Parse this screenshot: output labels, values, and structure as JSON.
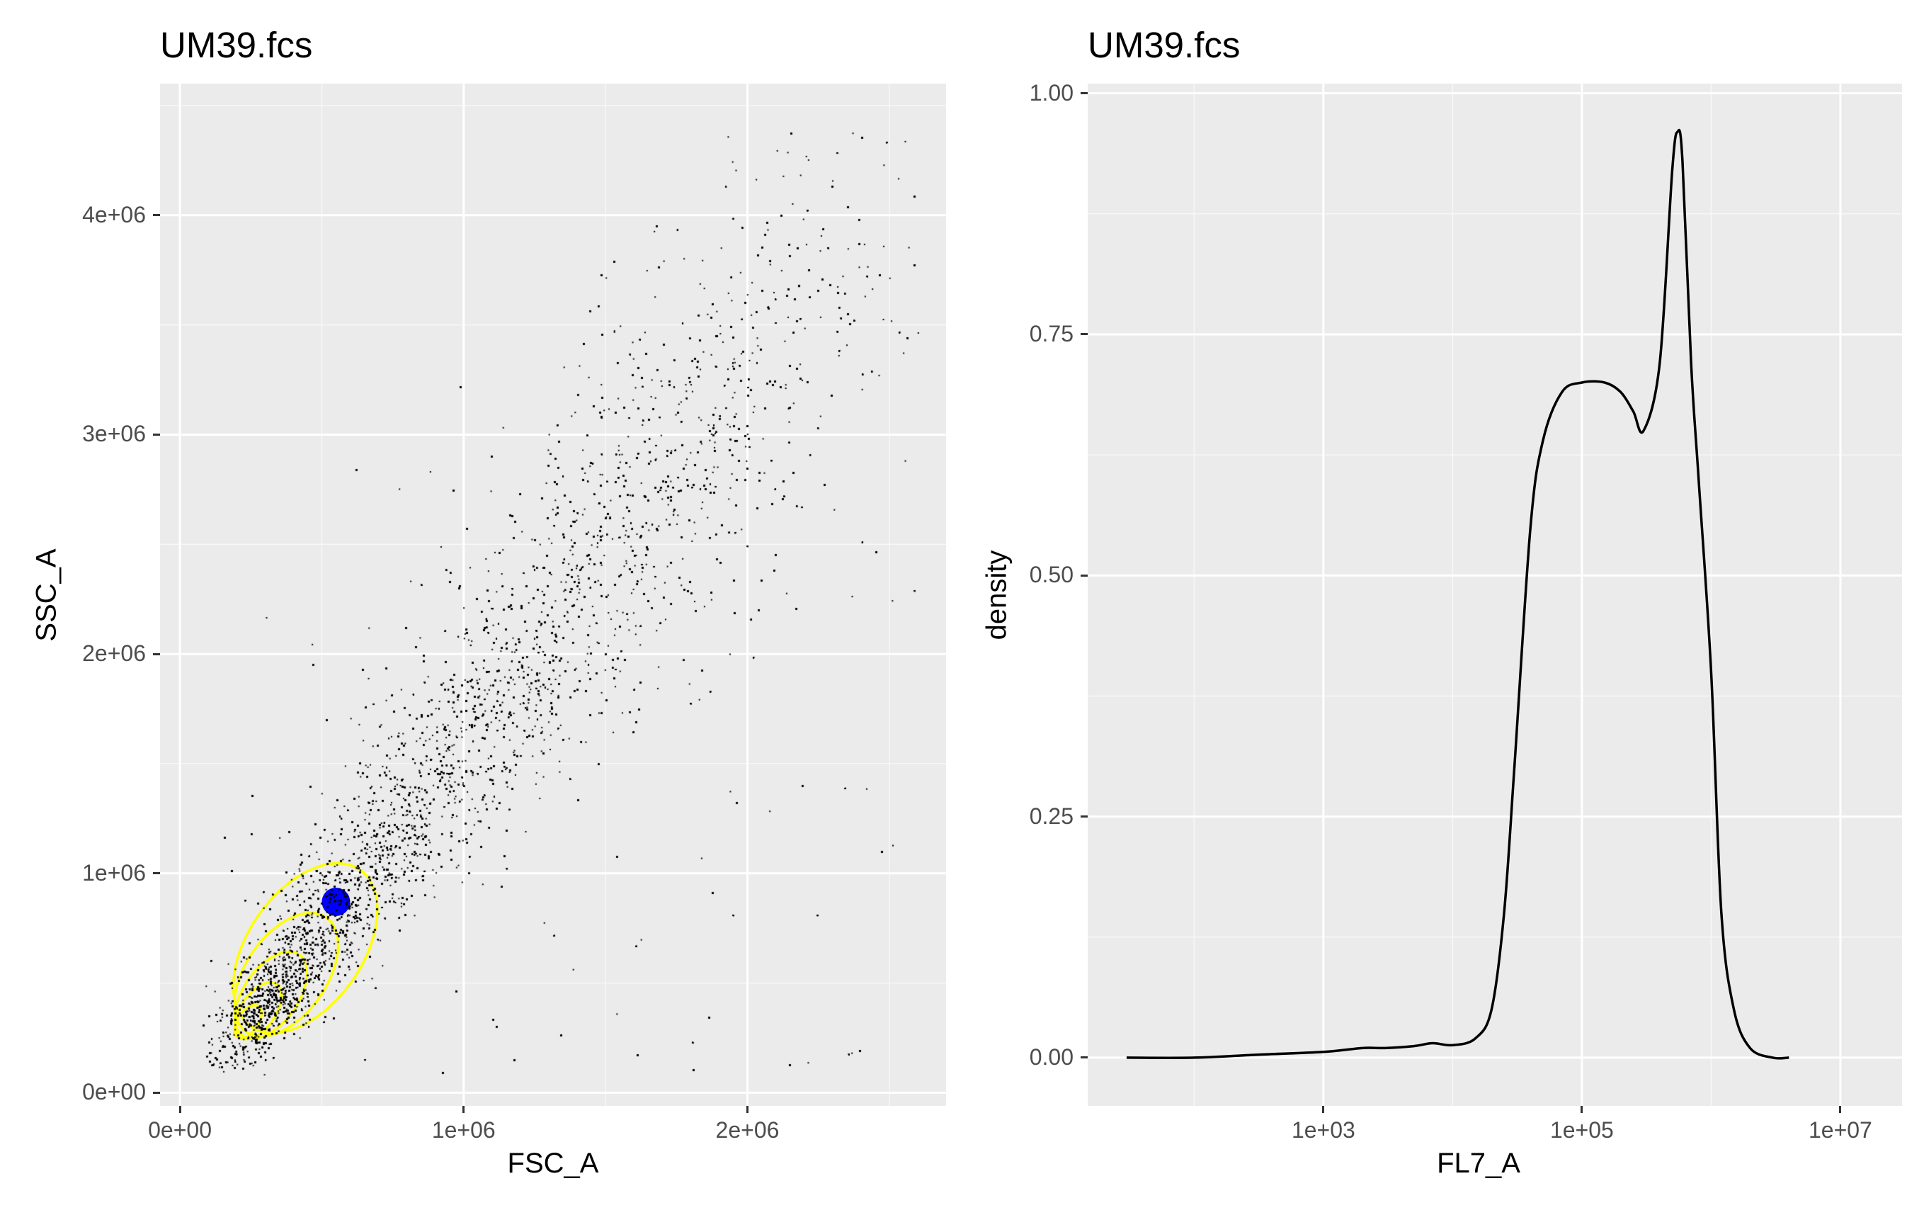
{
  "chart_data": [
    {
      "type": "scatter",
      "title": "UM39.fcs",
      "xlabel": "FSC_A",
      "ylabel": "SSC_A",
      "xlim": [
        -70000,
        2700000
      ],
      "ylim": [
        -60000,
        4600000
      ],
      "x_ticks": [
        0,
        1000000,
        2000000
      ],
      "x_tick_labels": [
        "0e+00",
        "1e+06",
        "2e+06"
      ],
      "y_ticks": [
        0,
        1000000,
        2000000,
        3000000,
        4000000
      ],
      "y_tick_labels": [
        "0e+00",
        "1e+06",
        "2e+06",
        "3e+06",
        "4e+06"
      ],
      "grid": true,
      "point_color": "#000000",
      "background": "#ebebeb",
      "point_cloud": {
        "approx_points": 60000,
        "x_range": [
          80000,
          2620000
        ],
        "y_range": [
          80000,
          4380000
        ],
        "trend": "positive, dense core near (400000, 700000), spreading toward (2100000, 3800000)"
      },
      "contours": {
        "color": "#ffff00",
        "center": [
          190000,
          280000
        ],
        "levels": [
          {
            "rx": 110000,
            "ry": 80000
          },
          {
            "rx": 190000,
            "ry": 170000
          },
          {
            "rx": 290000,
            "ry": 300000
          },
          {
            "rx": 410000,
            "ry": 470000
          },
          {
            "rx": 560000,
            "ry": 690000
          }
        ]
      },
      "highlight_point": {
        "x": 550000,
        "y": 870000,
        "color": "#0000ff"
      }
    },
    {
      "type": "line",
      "title": "UM39.fcs",
      "xlabel": "FL7_A",
      "ylabel": "density",
      "x_scale": "log10",
      "xlim": [
        15,
        30000000
      ],
      "ylim": [
        -0.05,
        1.01
      ],
      "x_ticks": [
        1000,
        100000,
        10000000
      ],
      "x_tick_labels": [
        "1e+03",
        "1e+05",
        "1e+07"
      ],
      "y_ticks": [
        0,
        0.25,
        0.5,
        0.75,
        1.0
      ],
      "y_tick_labels": [
        "0.00",
        "0.25",
        "0.50",
        "0.75",
        "1.00"
      ],
      "grid": true,
      "line_color": "#000000",
      "series": [
        {
          "x": [
            30,
            100,
            300,
            1000,
            2000,
            3000,
            5000,
            7000,
            10000,
            15000,
            20000,
            25000,
            30000,
            40000,
            50000,
            70000,
            100000,
            150000,
            200000,
            250000,
            300000,
            400000,
            500000,
            550000,
            600000,
            700000,
            800000,
            1000000,
            1200000,
            1500000,
            2000000,
            3000000,
            4000000
          ],
          "y": [
            0.0,
            0.0,
            0.003,
            0.006,
            0.01,
            0.01,
            0.012,
            0.015,
            0.013,
            0.02,
            0.05,
            0.15,
            0.3,
            0.55,
            0.64,
            0.69,
            0.7,
            0.7,
            0.69,
            0.67,
            0.65,
            0.72,
            0.92,
            0.96,
            0.93,
            0.72,
            0.6,
            0.4,
            0.15,
            0.05,
            0.01,
            0.0,
            0.0
          ]
        }
      ]
    }
  ]
}
